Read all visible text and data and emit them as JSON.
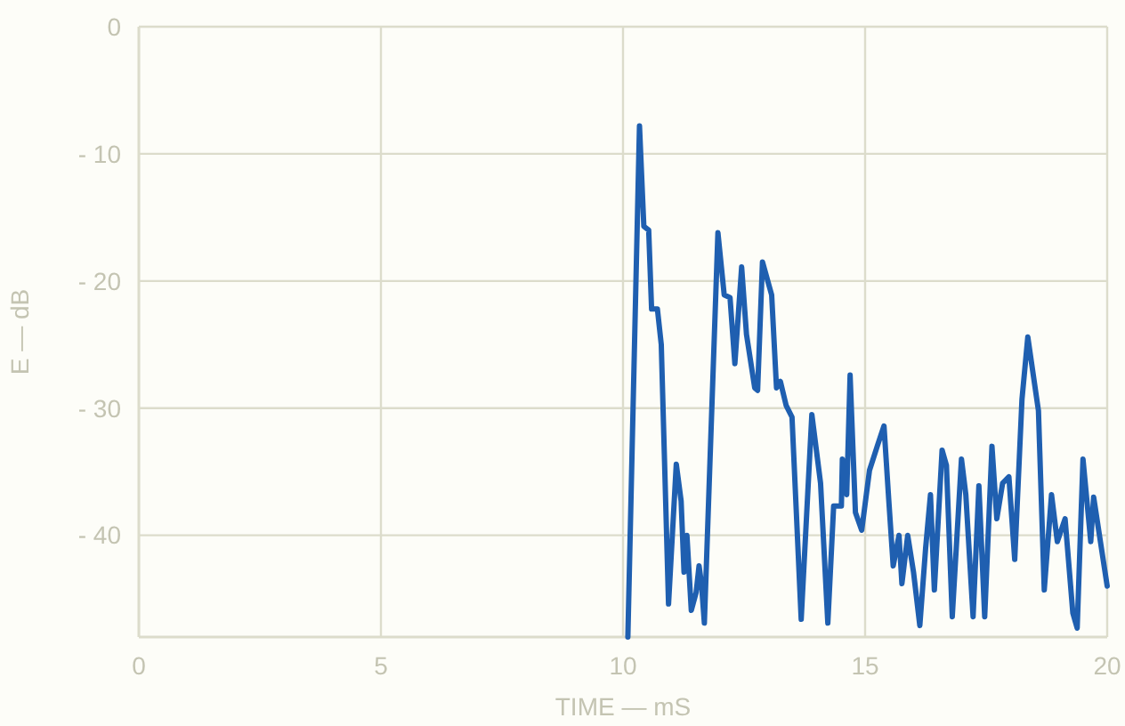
{
  "chart_data": {
    "type": "line",
    "xlabel": "TIME — mS",
    "ylabel": "E — dB",
    "xlim": [
      0,
      20
    ],
    "ylim": [
      -48,
      0
    ],
    "xticks": [
      0,
      5,
      10,
      15,
      20
    ],
    "yticks": [
      0,
      -10,
      -20,
      -30,
      -40
    ],
    "grid": true,
    "series": [
      {
        "color": "#1f5fb0",
        "x": [
          10.1,
          10.34,
          10.43,
          10.53,
          10.59,
          10.71,
          10.79,
          10.94,
          11.1,
          11.2,
          11.26,
          11.32,
          11.41,
          11.51,
          11.57,
          11.62,
          11.68,
          11.96,
          12.09,
          12.21,
          12.31,
          12.45,
          12.55,
          12.72,
          12.78,
          12.88,
          13.07,
          13.17,
          13.25,
          13.37,
          13.49,
          13.68,
          13.9,
          14.08,
          14.23,
          14.35,
          14.51,
          14.53,
          14.62,
          14.69,
          14.8,
          14.93,
          15.09,
          15.25,
          15.39,
          15.49,
          15.58,
          15.7,
          15.76,
          15.88,
          16.0,
          16.13,
          16.25,
          16.35,
          16.43,
          16.59,
          16.68,
          16.8,
          16.99,
          17.08,
          17.23,
          17.35,
          17.47,
          17.62,
          17.72,
          17.84,
          17.97,
          18.09,
          18.24,
          18.36,
          18.58,
          18.7,
          18.85,
          18.97,
          19.13,
          19.29,
          19.38,
          19.5,
          19.66,
          19.72,
          19.84,
          20.0
        ],
        "values": [
          -48,
          -7.8,
          -15.7,
          -16,
          -22.2,
          -22.2,
          -25,
          -45.4,
          -34.4,
          -37.3,
          -42.9,
          -40,
          -45.9,
          -44.5,
          -42.4,
          -43.8,
          -46.9,
          -16.2,
          -21.1,
          -21.3,
          -26.5,
          -18.9,
          -24.2,
          -28.4,
          -28.6,
          -18.5,
          -21.1,
          -28.4,
          -27.9,
          -29.8,
          -30.7,
          -46.6,
          -30.5,
          -35.9,
          -46.9,
          -37.7,
          -37.7,
          -34,
          -36.8,
          -27.4,
          -38.2,
          -39.6,
          -34.9,
          -33,
          -31.4,
          -37.3,
          -42.4,
          -40,
          -43.8,
          -40,
          -42.9,
          -47.1,
          -41,
          -36.8,
          -44.3,
          -33.3,
          -34.5,
          -46.4,
          -34,
          -36.8,
          -46.4,
          -36.1,
          -46.4,
          -33,
          -38.7,
          -35.9,
          -35.4,
          -41.9,
          -29.3,
          -24.4,
          -30.2,
          -44.3,
          -36.8,
          -40.5,
          -38.7,
          -46.1,
          -47.3,
          -34,
          -40.5,
          -37,
          -40,
          -44
        ]
      }
    ]
  }
}
